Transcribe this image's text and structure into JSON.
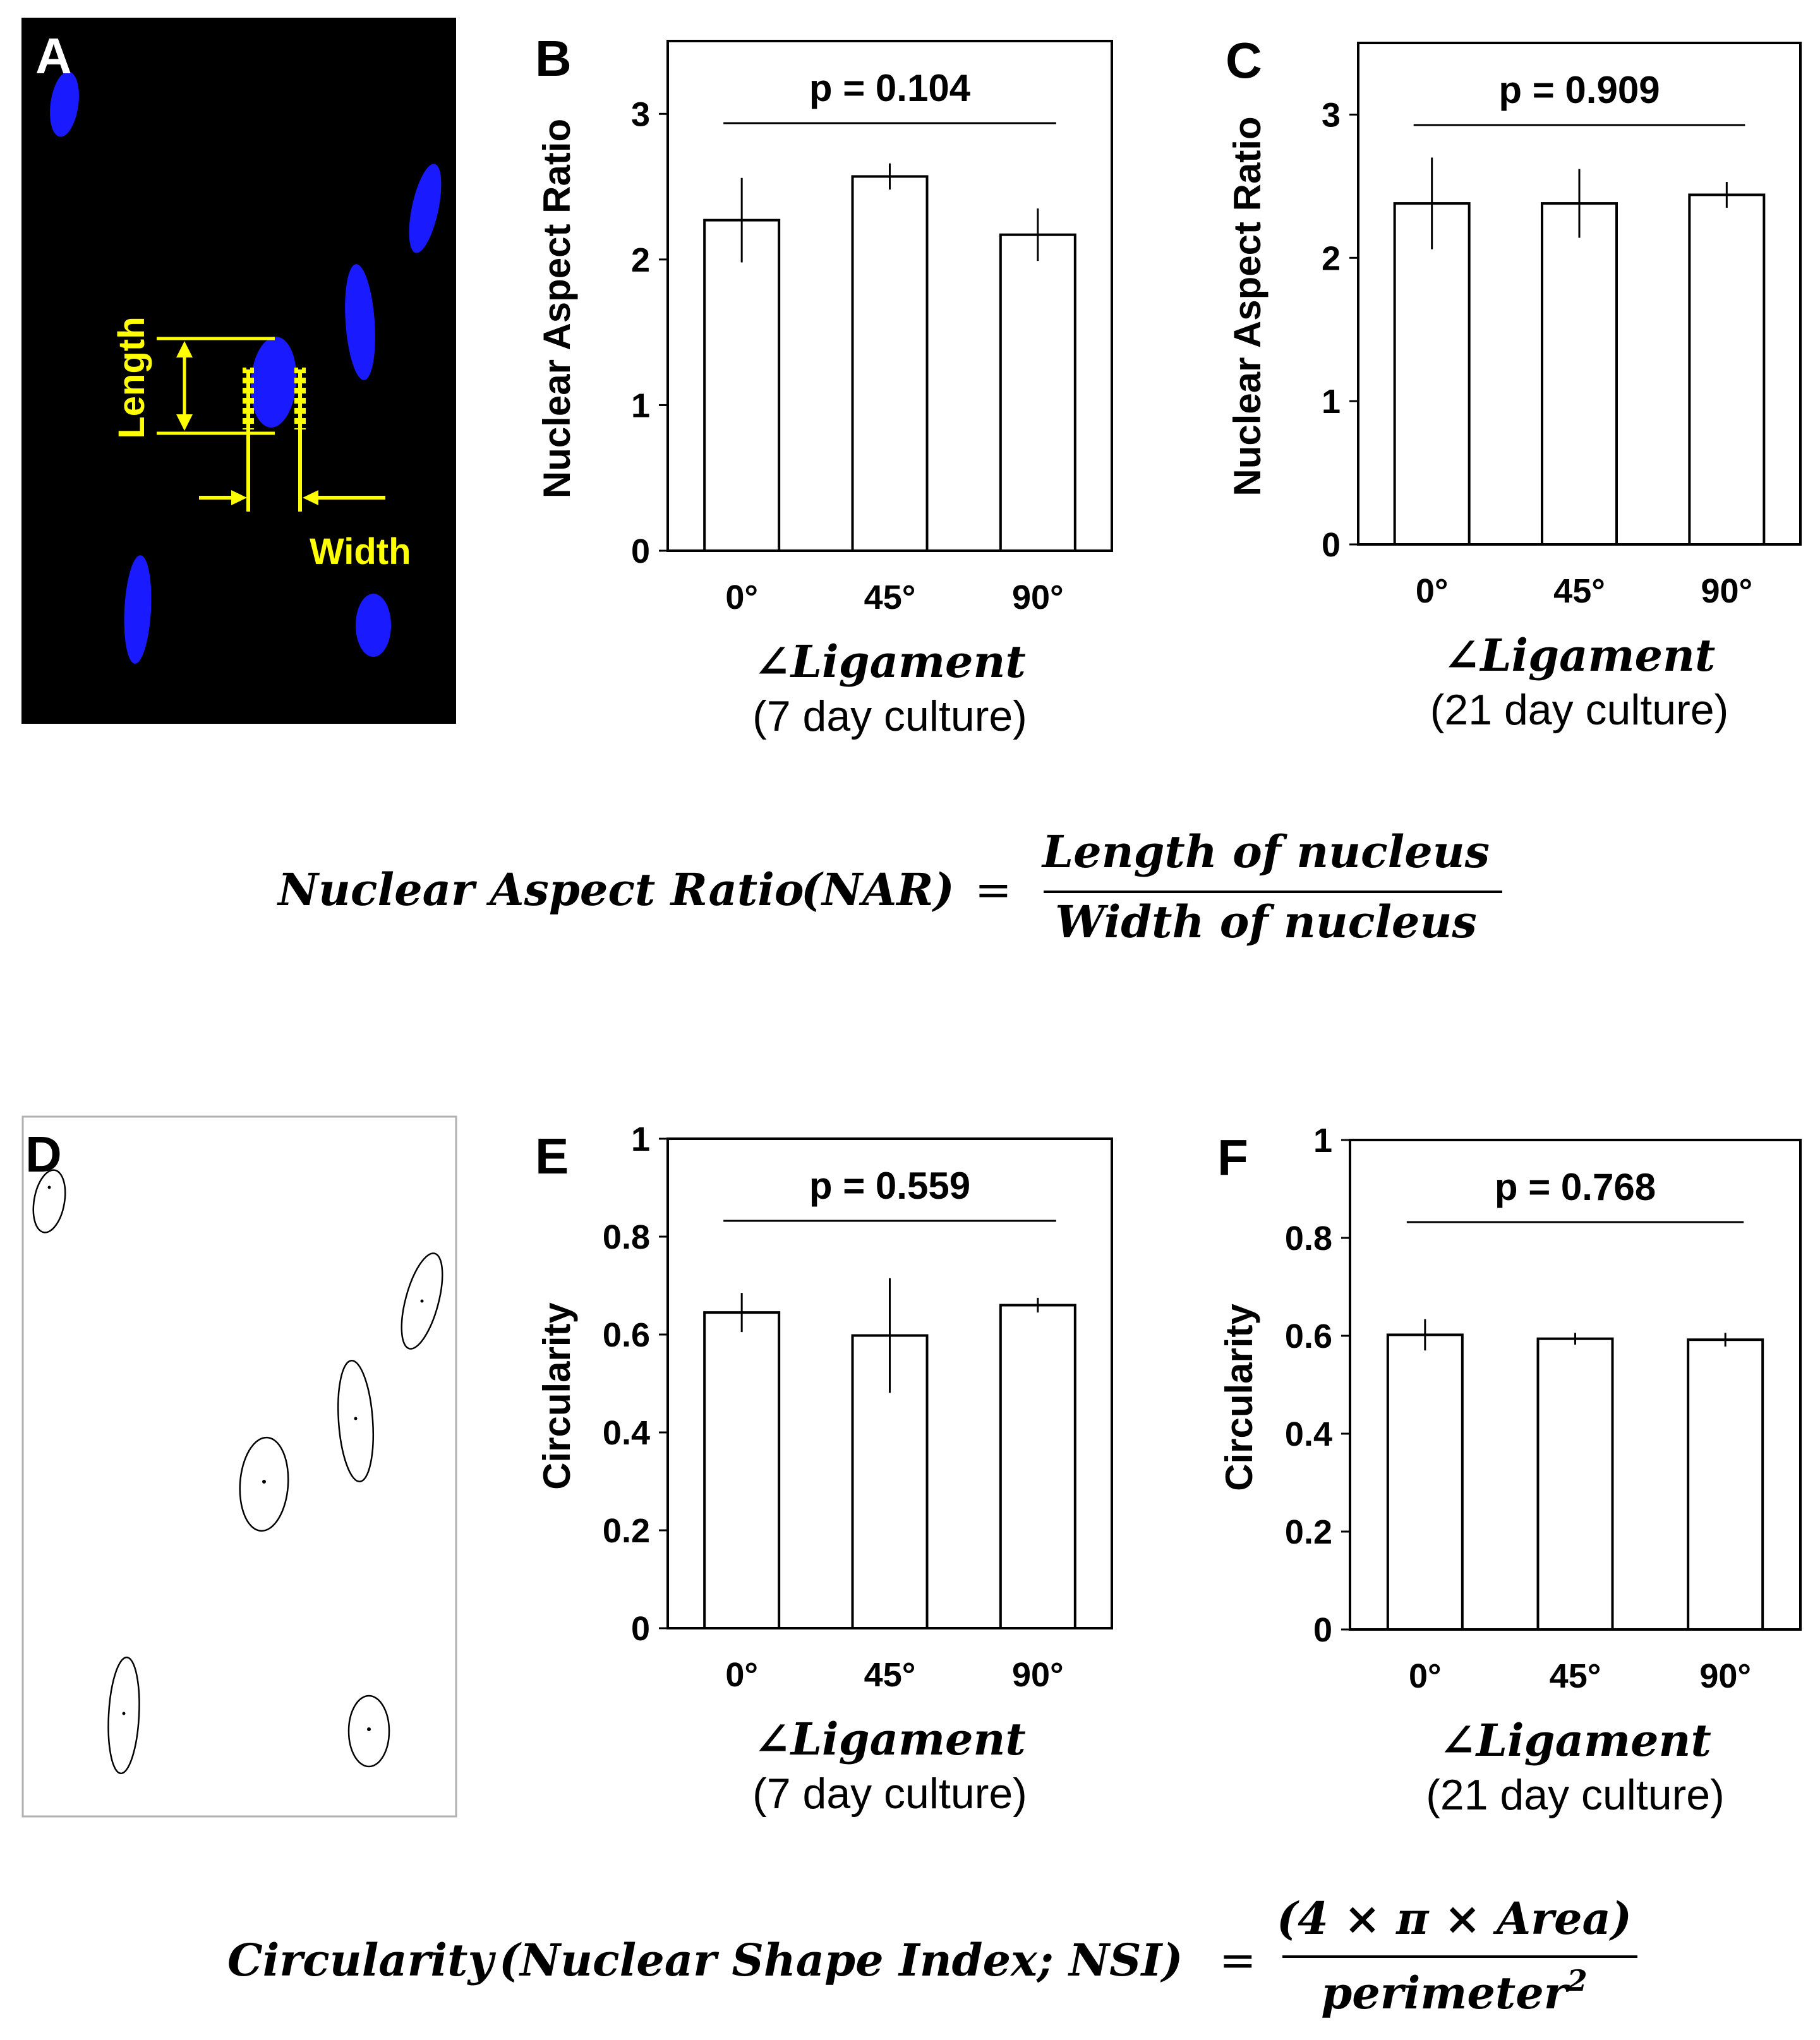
{
  "panels": {
    "A": {
      "letter": "A",
      "length_label": "Length",
      "width_label": "Width"
    },
    "D": {
      "letter": "D"
    }
  },
  "formulas": {
    "nar": {
      "lhs": "Nuclear Aspect Ratio",
      "abbr": "(NAR)",
      "eq": "=",
      "numerator": "Length of nucleus",
      "denominator": "Width of nucleus"
    },
    "nsi": {
      "lhs": "Circularity",
      "paren": "(Nuclear Shape Index; NSI)",
      "eq": "=",
      "numerator": "(4 × π × Area)",
      "denominator_base": "perimeter",
      "denominator_exp": "2"
    }
  },
  "colors": {
    "fluorescence_background": "#000000",
    "nucleus": "#1a1aff",
    "annotation": "#ffff00",
    "bar_fill": "#ffffff",
    "axis": "#000000"
  },
  "chart_data": [
    {
      "panel": "B",
      "type": "bar",
      "categories": [
        "0°",
        "45°",
        "90°"
      ],
      "values": [
        2.27,
        2.57,
        2.17
      ],
      "errors": [
        0.29,
        0.09,
        0.18
      ],
      "ylabel": "Nuclear Aspect Ratio",
      "xlabel": "∠Ligament",
      "xsub": "(7 day culture)",
      "ylim": [
        0,
        3.5
      ],
      "yticks": [
        "0",
        "1",
        "2",
        "3"
      ],
      "yticks_values": [
        0,
        1,
        2,
        3
      ],
      "annotation": "p = 0.104",
      "grid": false
    },
    {
      "panel": "C",
      "type": "bar",
      "categories": [
        "0°",
        "45°",
        "90°"
      ],
      "values": [
        2.38,
        2.38,
        2.44
      ],
      "errors": [
        0.32,
        0.24,
        0.09
      ],
      "ylabel": "Nuclear Aspect Ratio",
      "xlabel": "∠Ligament",
      "xsub": "(21 day culture)",
      "ylim": [
        0,
        3.5
      ],
      "yticks": [
        "0",
        "1",
        "2",
        "3"
      ],
      "yticks_values": [
        0,
        1,
        2,
        3
      ],
      "annotation": "p = 0.909",
      "grid": false
    },
    {
      "panel": "E",
      "type": "bar",
      "categories": [
        "0°",
        "45°",
        "90°"
      ],
      "values": [
        0.645,
        0.598,
        0.66
      ],
      "errors": [
        0.04,
        0.117,
        0.015
      ],
      "ylabel": "Circularity",
      "xlabel": "∠Ligament",
      "xsub": "(7 day culture)",
      "ylim": [
        0,
        1
      ],
      "yticks": [
        "0",
        "0.2",
        "0.4",
        "0.6",
        "0.8",
        "1"
      ],
      "yticks_values": [
        0,
        0.2,
        0.4,
        0.6,
        0.8,
        1
      ],
      "annotation": "p = 0.559",
      "grid": false
    },
    {
      "panel": "F",
      "type": "bar",
      "categories": [
        "0°",
        "45°",
        "90°"
      ],
      "values": [
        0.602,
        0.594,
        0.592
      ],
      "errors": [
        0.032,
        0.012,
        0.014
      ],
      "ylabel": "Circularity",
      "xlabel": "∠Ligament",
      "xsub": "(21 day culture)",
      "ylim": [
        0,
        1
      ],
      "yticks": [
        "0",
        "0.2",
        "0.4",
        "0.6",
        "0.8",
        "1"
      ],
      "yticks_values": [
        0,
        0.2,
        0.4,
        0.6,
        0.8,
        1
      ],
      "annotation": "p = 0.768",
      "grid": false
    }
  ]
}
